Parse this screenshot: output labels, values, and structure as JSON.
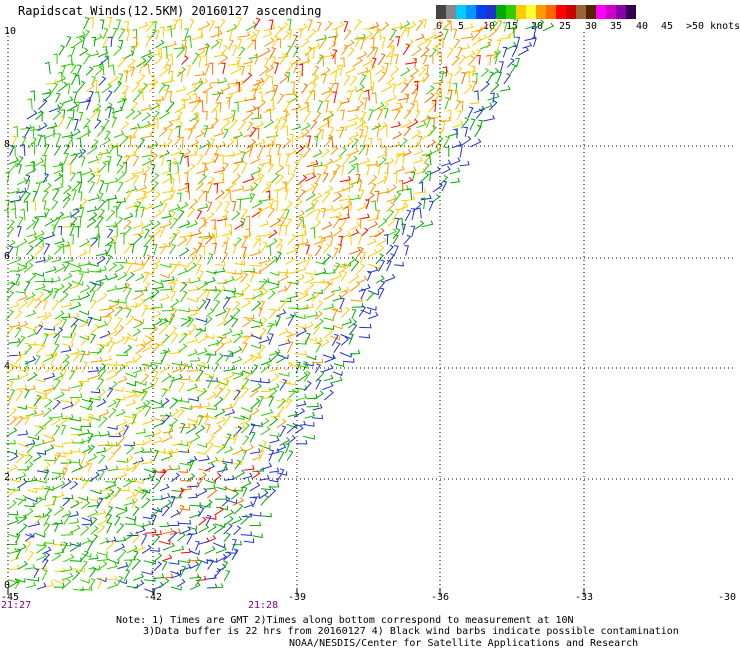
{
  "title": "Rapidscat Winds(12.5KM) 20160127 ascending",
  "legend": {
    "colors": [
      "#444444",
      "#888888",
      "#00ccff",
      "#0099ff",
      "#0044ee",
      "#2233cc",
      "#00aa00",
      "#33cc00",
      "#ffcc00",
      "#ffff33",
      "#ff9900",
      "#ff6600",
      "#ff0000",
      "#cc0000",
      "#996633",
      "#552200",
      "#ff00ff",
      "#cc00cc",
      "#8800aa",
      "#330055"
    ],
    "labels": [
      "0",
      "5",
      "10",
      "15",
      "20",
      "25",
      "30",
      "35",
      "40",
      "45",
      ">50 knots"
    ]
  },
  "map": {
    "lat_ticks": [
      "10",
      "8",
      "6",
      "4",
      "2",
      "0"
    ],
    "lon_ticks": [
      "-45",
      "-42",
      "-39",
      "-36",
      "-33",
      "-30"
    ],
    "start_time": "21:27",
    "end_time": "21:28"
  },
  "notes": {
    "line1": "Note: 1) Times are GMT 2)Times along bottom correspond to measurement at 10N",
    "line2": "3)Data buffer is 22 hrs from 20160127 4) Black wind barbs indicate possible contamination",
    "line3": "NOAA/NESDIS/Center for Satellite Applications and Research"
  }
}
